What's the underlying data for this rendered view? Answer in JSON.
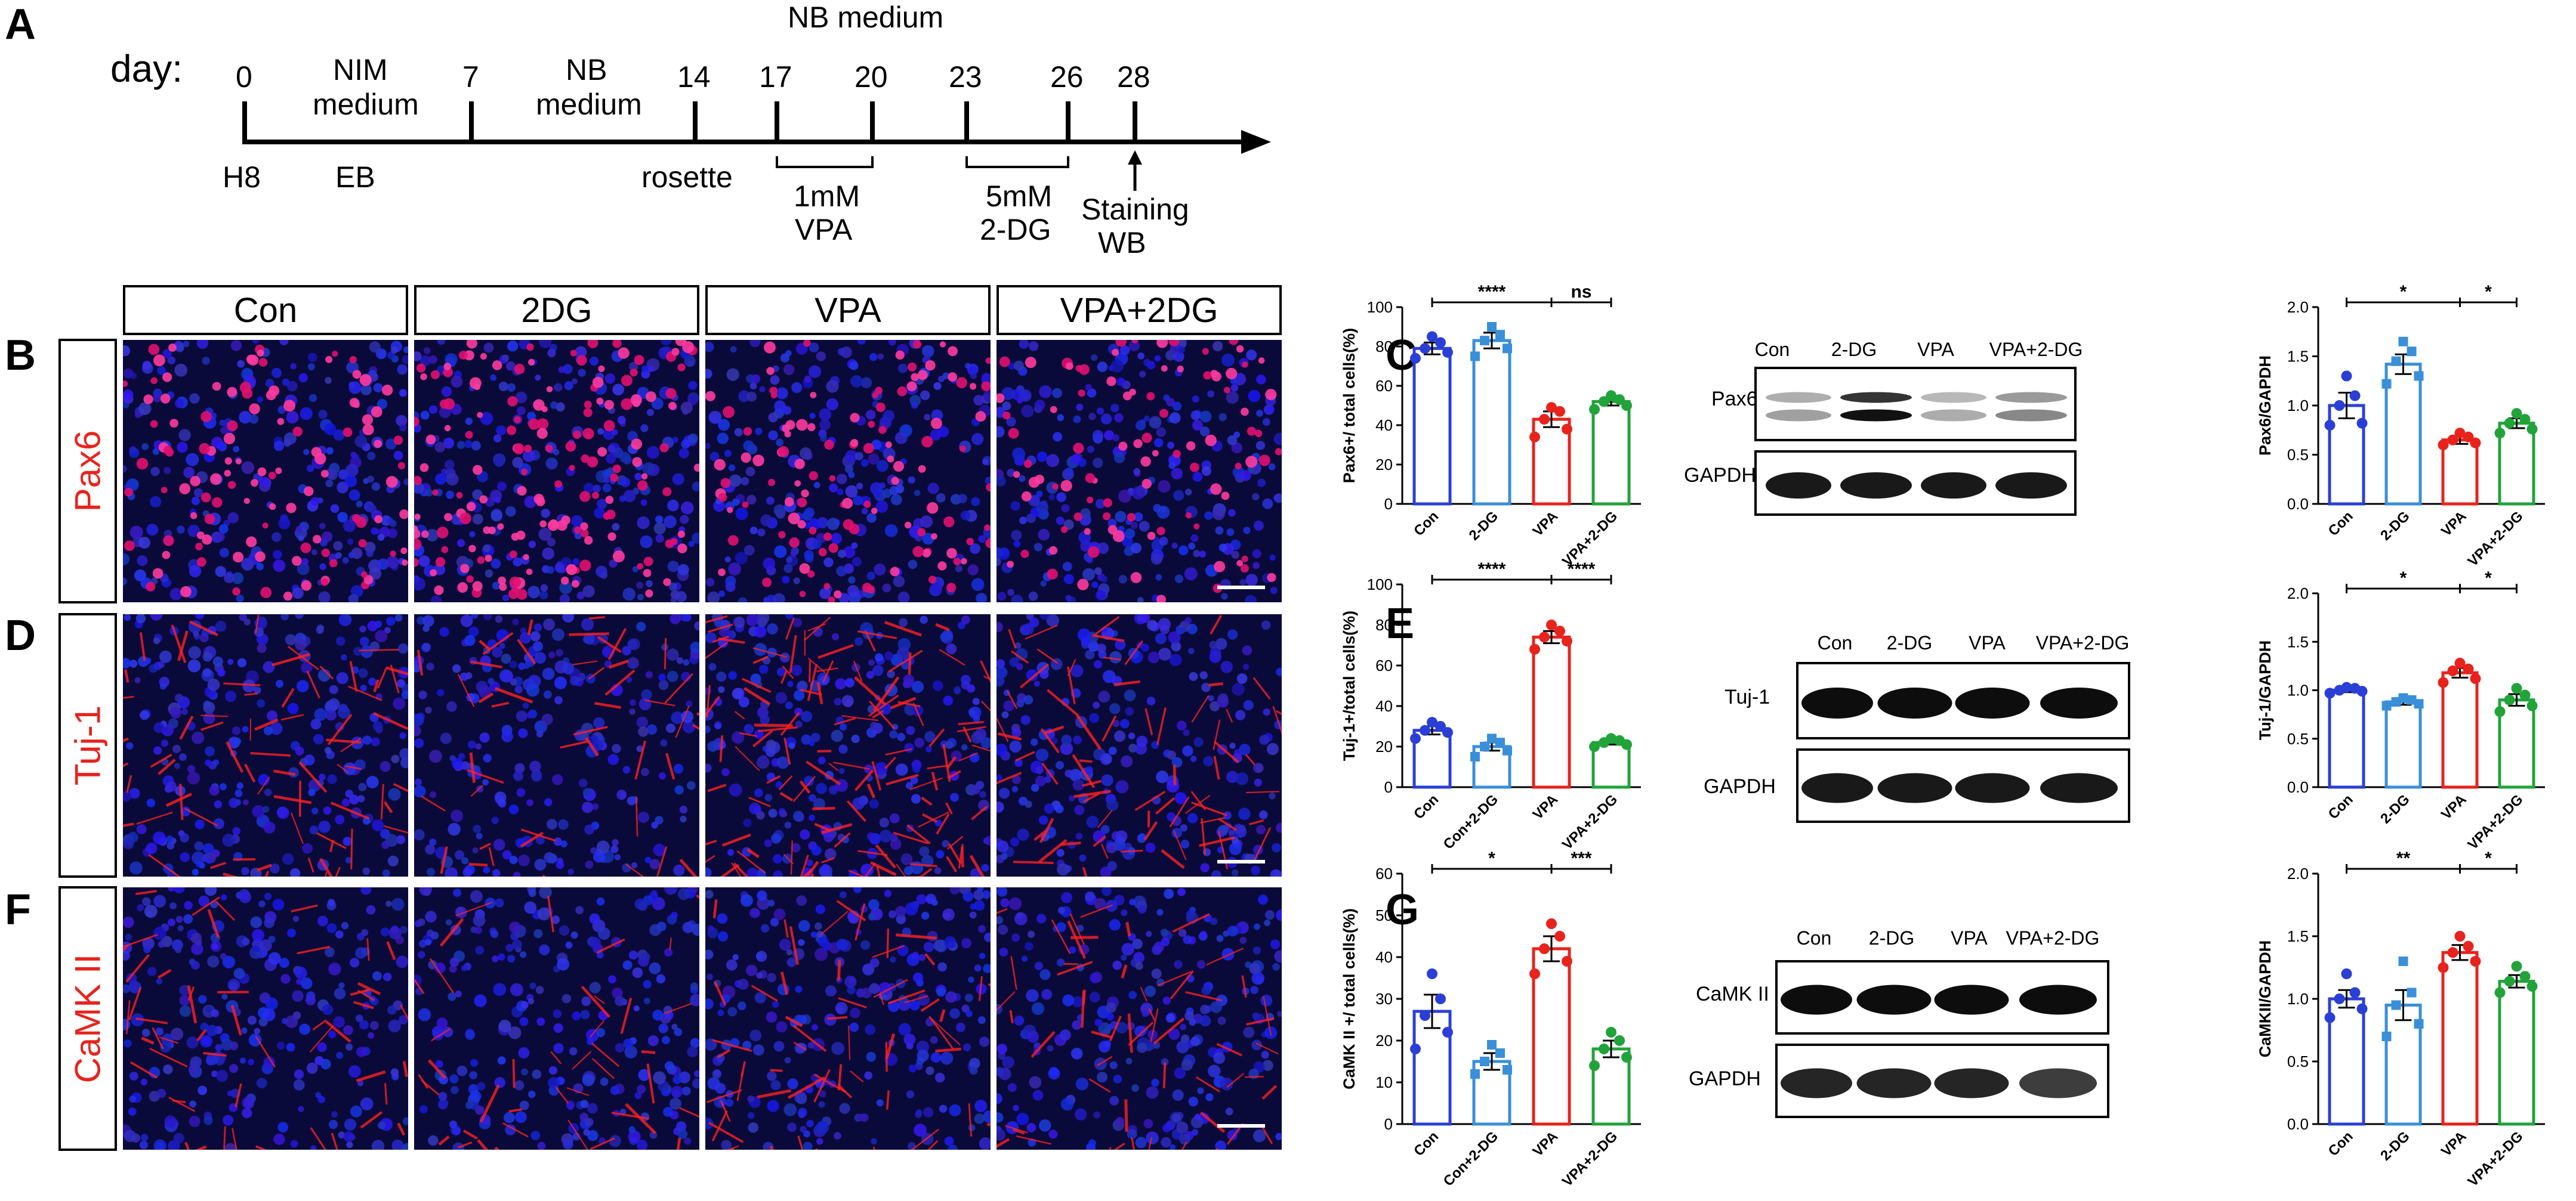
{
  "panel_letters": {
    "A": "A",
    "B": "B",
    "C": "C",
    "D": "D",
    "E": "E",
    "F": "F",
    "G": "G"
  },
  "timeline": {
    "day_label": "day:",
    "days": [
      "0",
      "7",
      "14",
      "17",
      "20",
      "23",
      "26",
      "28"
    ],
    "top_label": "NB medium",
    "nim_line1": "NIM",
    "nim_line2": "medium",
    "nb_line1": "NB",
    "nb_line2": "medium",
    "h8": "H8",
    "eb": "EB",
    "rosette": "rosette",
    "vpa_line1": "1mM",
    "vpa_line2": "VPA",
    "dg_line1": "5mM",
    "dg_line2": "2-DG",
    "staining": "Staining",
    "wb": "WB"
  },
  "column_headers": [
    "Con",
    "2DG",
    "VPA",
    "VPA+2DG"
  ],
  "row_labels": [
    "Pax6",
    "Tuj-1",
    "CaMK II"
  ],
  "blots": {
    "C": {
      "lanes": [
        "Con",
        "2-DG",
        "VPA",
        "VPA+2-DG"
      ],
      "target": "Pax6",
      "control": "GAPDH"
    },
    "E": {
      "lanes": [
        "Con",
        "2-DG",
        "VPA",
        "VPA+2-DG"
      ],
      "target": "Tuj-1",
      "control": "GAPDH"
    },
    "G": {
      "lanes": [
        "Con",
        "2-DG",
        "VPA",
        "VPA+2-DG"
      ],
      "target": "CaMK II",
      "control": "GAPDH"
    }
  },
  "colors": {
    "con": "#2b3fd6",
    "dg": "#3a8fd9",
    "vpa": "#e8231c",
    "vpadg": "#21a33a",
    "label_red": "#e8231c"
  },
  "chart_data": [
    {
      "id": "B-bar",
      "type": "bar",
      "ylabel": "Pax6+/ total cells(%)",
      "categories": [
        "Con",
        "2-DG",
        "VPA",
        "VPA+2-DG"
      ],
      "values": [
        79,
        83,
        43,
        52
      ],
      "errors": [
        3,
        4,
        4,
        2
      ],
      "points": [
        [
          74,
          77,
          79,
          82,
          85
        ],
        [
          75,
          79,
          83,
          86,
          90
        ],
        [
          34,
          38,
          43,
          47,
          49
        ],
        [
          48,
          50,
          52,
          53,
          55
        ]
      ],
      "ylim": [
        0,
        100
      ],
      "yticks": [
        0,
        20,
        40,
        60,
        80,
        100
      ],
      "sig": [
        {
          "from": 0,
          "to": 2,
          "label": "****"
        },
        {
          "from": 2,
          "to": 3,
          "label": "ns"
        }
      ]
    },
    {
      "id": "C-bar",
      "type": "bar",
      "ylabel": "Pax6/GAPDH",
      "categories": [
        "Con",
        "2-DG",
        "VPA",
        "VPA+2-DG"
      ],
      "values": [
        1.0,
        1.42,
        0.65,
        0.82
      ],
      "errors": [
        0.13,
        0.1,
        0.04,
        0.05
      ],
      "points": [
        [
          0.8,
          0.82,
          1.0,
          1.1,
          1.3
        ],
        [
          1.22,
          1.3,
          1.45,
          1.55,
          1.65
        ],
        [
          0.6,
          0.62,
          0.65,
          0.68,
          0.72
        ],
        [
          0.72,
          0.76,
          0.82,
          0.86,
          0.92
        ]
      ],
      "ylim": [
        0,
        2.0
      ],
      "yticks": [
        0.0,
        0.5,
        1.0,
        1.5,
        2.0
      ],
      "sig": [
        {
          "from": 0,
          "to": 2,
          "label": "*"
        },
        {
          "from": 2,
          "to": 3,
          "label": "*"
        }
      ]
    },
    {
      "id": "D-bar",
      "type": "bar",
      "ylabel": "Tuj-1+/total cells(%)",
      "categories": [
        "Con",
        "Con+2-DG",
        "VPA",
        "VPA+2-DG"
      ],
      "values": [
        28,
        20,
        74,
        22
      ],
      "errors": [
        2,
        2,
        3,
        1
      ],
      "points": [
        [
          24,
          27,
          28,
          30,
          32
        ],
        [
          15,
          18,
          20,
          22,
          24
        ],
        [
          68,
          72,
          74,
          77,
          80
        ],
        [
          20,
          21,
          22,
          23,
          24
        ]
      ],
      "ylim": [
        0,
        100
      ],
      "yticks": [
        0,
        20,
        40,
        60,
        80,
        100
      ],
      "sig": [
        {
          "from": 0,
          "to": 2,
          "label": "****"
        },
        {
          "from": 2,
          "to": 3,
          "label": "****"
        }
      ]
    },
    {
      "id": "E-bar",
      "type": "bar",
      "ylabel": "Tuj-1/GAPDH",
      "categories": [
        "Con",
        "2-DG",
        "VPA",
        "VPA+2-DG"
      ],
      "values": [
        1.0,
        0.88,
        1.18,
        0.9
      ],
      "errors": [
        0.02,
        0.03,
        0.05,
        0.06
      ],
      "points": [
        [
          0.97,
          0.99,
          1.0,
          1.02,
          1.03
        ],
        [
          0.84,
          0.86,
          0.88,
          0.9,
          0.92
        ],
        [
          1.08,
          1.12,
          1.2,
          1.22,
          1.28
        ],
        [
          0.78,
          0.84,
          0.9,
          0.95,
          1.02
        ]
      ],
      "ylim": [
        0,
        2.0
      ],
      "yticks": [
        0.0,
        0.5,
        1.0,
        1.5,
        2.0
      ],
      "sig": [
        {
          "from": 0,
          "to": 2,
          "label": "*"
        },
        {
          "from": 2,
          "to": 3,
          "label": "*"
        }
      ]
    },
    {
      "id": "F-bar",
      "type": "bar",
      "ylabel": "CaMK II +/ total cells(%)",
      "categories": [
        "Con",
        "Con+2-DG",
        "VPA",
        "VPA+2-DG"
      ],
      "values": [
        27,
        15,
        42,
        18
      ],
      "errors": [
        4,
        2,
        3,
        2
      ],
      "points": [
        [
          18,
          22,
          26,
          30,
          36
        ],
        [
          12,
          13,
          15,
          17,
          19
        ],
        [
          36,
          39,
          42,
          45,
          48
        ],
        [
          14,
          16,
          18,
          20,
          22
        ]
      ],
      "ylim": [
        0,
        60
      ],
      "yticks": [
        0,
        10,
        20,
        30,
        40,
        50,
        60
      ],
      "sig": [
        {
          "from": 0,
          "to": 2,
          "label": "*"
        },
        {
          "from": 2,
          "to": 3,
          "label": "***"
        }
      ]
    },
    {
      "id": "G-bar",
      "type": "bar",
      "ylabel": "CaMKII/GAPDH",
      "categories": [
        "Con",
        "2-DG",
        "VPA",
        "VPA+2-DG"
      ],
      "values": [
        1.0,
        0.95,
        1.37,
        1.14
      ],
      "errors": [
        0.07,
        0.12,
        0.06,
        0.05
      ],
      "points": [
        [
          0.85,
          0.92,
          1.0,
          1.05,
          1.2
        ],
        [
          0.7,
          0.8,
          0.95,
          1.05,
          1.3
        ],
        [
          1.25,
          1.3,
          1.37,
          1.42,
          1.5
        ],
        [
          1.05,
          1.1,
          1.14,
          1.18,
          1.26
        ]
      ],
      "ylim": [
        0,
        2.0
      ],
      "yticks": [
        0.0,
        0.5,
        1.0,
        1.5,
        2.0
      ],
      "sig": [
        {
          "from": 0,
          "to": 2,
          "label": "**"
        },
        {
          "from": 2,
          "to": 3,
          "label": "*"
        }
      ]
    }
  ]
}
